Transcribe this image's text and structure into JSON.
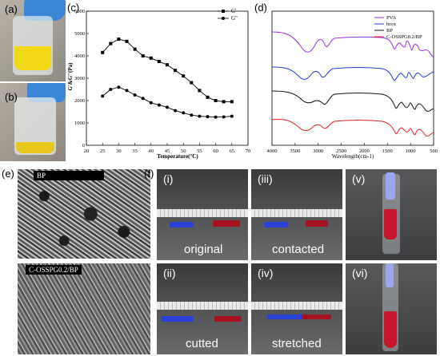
{
  "panels": {
    "a": "(a)",
    "b": "(b)",
    "c": "(c)",
    "d": "(d)",
    "e": "(e)",
    "f": "(f)"
  },
  "chart_c": {
    "type": "line",
    "x": [
      25,
      27.5,
      30,
      32.5,
      35,
      37.5,
      40,
      42.5,
      45,
      47.5,
      50,
      52.5,
      55,
      57.5,
      60,
      62.5,
      65
    ],
    "series": [
      {
        "name": "G'",
        "marker": "square",
        "values": [
          4150,
          4550,
          4750,
          4650,
          4300,
          4000,
          3900,
          3750,
          3600,
          3350,
          3100,
          2800,
          2450,
          2150,
          2000,
          1950,
          1950
        ]
      },
      {
        "name": "G\"",
        "marker": "circle",
        "values": [
          2200,
          2500,
          2600,
          2450,
          2250,
          2100,
          1900,
          1800,
          1700,
          1550,
          1450,
          1350,
          1300,
          1280,
          1260,
          1270,
          1300
        ]
      }
    ],
    "xlabel": "Temperature(°C)",
    "ylabel": "G'&G''(Pa)",
    "xlim": [
      20,
      70
    ],
    "ylim": [
      0,
      6000
    ],
    "xticks": [
      "20",
      "25",
      "30",
      "35",
      "40",
      "45",
      "50",
      "55",
      "60",
      "65",
      "70"
    ],
    "yticks": [
      "0",
      "1000",
      "2000",
      "3000",
      "4000",
      "5000",
      "6000"
    ]
  },
  "chart_d": {
    "type": "line",
    "xlabel": "Wavelength(cm-1)",
    "xlim": [
      4000,
      500
    ],
    "xticks": [
      "4000",
      "3500",
      "3000",
      "2500",
      "2000",
      "1500",
      "1000",
      "500"
    ],
    "legend": [
      {
        "name": "PVA",
        "color": "#9b30d9"
      },
      {
        "name": "brox",
        "color": "#1f3fd6"
      },
      {
        "name": "BP",
        "color": "#111111"
      },
      {
        "name": "C-OSSPG0.2/BP",
        "color": "#e02020"
      }
    ]
  },
  "panel_e": {
    "top_tag": "BP",
    "bottom_tag": "C-OSSPG0.2/BP"
  },
  "panel_f": {
    "i": {
      "roman": "(i)",
      "caption": "original"
    },
    "ii": {
      "roman": "(ii)",
      "caption": "cutted"
    },
    "iii": {
      "roman": "(iii)",
      "caption": "contacted"
    },
    "iv": {
      "roman": "(iv)",
      "caption": "stretched"
    },
    "v": {
      "roman": "(v)"
    },
    "vi": {
      "roman": "(vi)"
    }
  }
}
